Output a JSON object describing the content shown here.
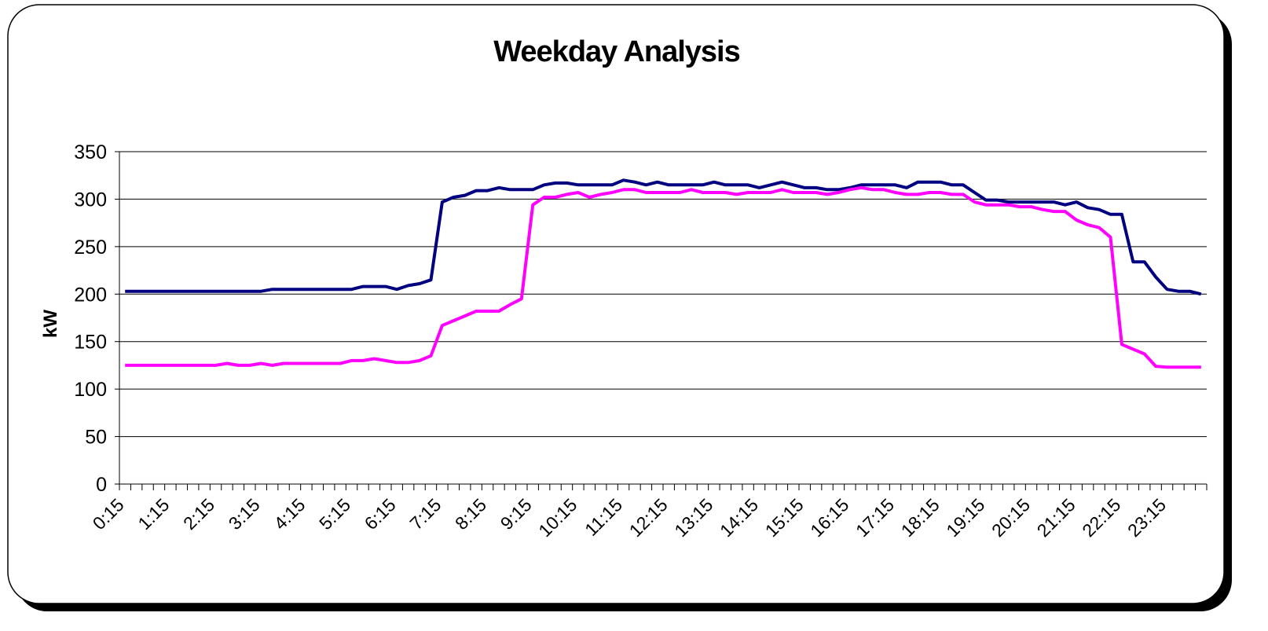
{
  "chart_data": {
    "type": "line",
    "title": "Weekday Analysis",
    "y_label": "kW",
    "categories": [
      "0:15",
      null,
      null,
      null,
      "1:15",
      null,
      null,
      null,
      "2:15",
      null,
      null,
      null,
      "3:15",
      null,
      null,
      null,
      "4:15",
      null,
      null,
      null,
      "5:15",
      null,
      null,
      null,
      "6:15",
      null,
      null,
      null,
      "7:15",
      null,
      null,
      null,
      "8:15",
      null,
      null,
      null,
      "9:15",
      null,
      null,
      null,
      "10:15",
      null,
      null,
      null,
      "11:15",
      null,
      null,
      null,
      "12:15",
      null,
      null,
      null,
      "13:15",
      null,
      null,
      null,
      "14:15",
      null,
      null,
      null,
      "15:15",
      null,
      null,
      null,
      "16:15",
      null,
      null,
      null,
      "17:15",
      null,
      null,
      null,
      "18:15",
      null,
      null,
      null,
      "19:15",
      null,
      null,
      null,
      "20:15",
      null,
      null,
      null,
      "21:15",
      null,
      null,
      null,
      "22:15",
      null,
      null,
      null,
      "23:15",
      null,
      null,
      null
    ],
    "series": [
      {
        "color": "#000080",
        "values": [
          203,
          203,
          203,
          203,
          203,
          203,
          203,
          203,
          203,
          203,
          203,
          203,
          203,
          205,
          205,
          205,
          205,
          205,
          205,
          205,
          205,
          208,
          208,
          208,
          205,
          209,
          211,
          215,
          297,
          302,
          304,
          309,
          309,
          312,
          310,
          310,
          310,
          315,
          317,
          317,
          315,
          315,
          315,
          315,
          320,
          318,
          315,
          318,
          315,
          315,
          315,
          315,
          318,
          315,
          315,
          315,
          312,
          315,
          318,
          315,
          312,
          312,
          310,
          310,
          312,
          315,
          315,
          315,
          315,
          312,
          318,
          318,
          318,
          315,
          315,
          307,
          299,
          299,
          297,
          297,
          297,
          297,
          297,
          294,
          297,
          291,
          289,
          284,
          284,
          234,
          234,
          218,
          205,
          203,
          203,
          200
        ]
      },
      {
        "color": "#ff00ff",
        "values": [
          125,
          125,
          125,
          125,
          125,
          125,
          125,
          125,
          125,
          127,
          125,
          125,
          127,
          125,
          127,
          127,
          127,
          127,
          127,
          127,
          130,
          130,
          132,
          130,
          128,
          128,
          130,
          135,
          167,
          172,
          177,
          182,
          182,
          182,
          189,
          195,
          294,
          302,
          302,
          305,
          307,
          302,
          305,
          307,
          310,
          310,
          307,
          307,
          307,
          307,
          310,
          307,
          307,
          307,
          305,
          307,
          307,
          307,
          310,
          307,
          307,
          307,
          305,
          307,
          310,
          312,
          310,
          310,
          307,
          305,
          305,
          307,
          307,
          305,
          305,
          297,
          294,
          294,
          294,
          292,
          292,
          289,
          287,
          287,
          278,
          273,
          270,
          260,
          147,
          142,
          137,
          124,
          123,
          123,
          123,
          123
        ]
      }
    ],
    "ylim": [
      0,
      350
    ],
    "yticks": [
      0,
      50,
      100,
      150,
      200,
      250,
      300,
      350
    ],
    "grid": true
  }
}
